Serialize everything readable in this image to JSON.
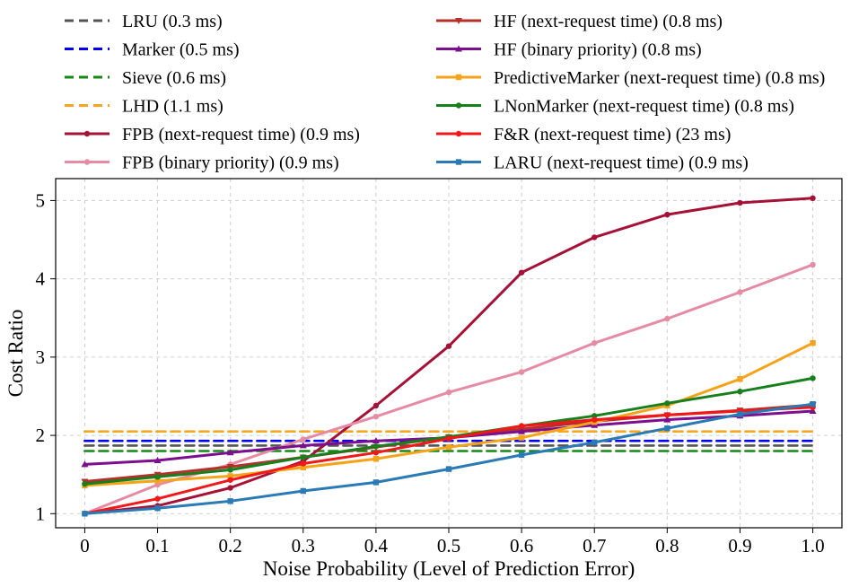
{
  "chart_data": {
    "type": "line",
    "title": "",
    "xlabel": "Noise Probability (Level of Prediction Error)",
    "ylabel": "Cost Ratio",
    "xlim": [
      -0.04,
      1.04
    ],
    "ylim": [
      0.82,
      5.28
    ],
    "x": [
      0,
      0.1,
      0.2,
      0.3,
      0.4,
      0.5,
      0.6,
      0.7,
      0.8,
      0.9,
      1.0
    ],
    "x_tick_labels": [
      "0",
      "0.1",
      "0.2",
      "0.3",
      "0.4",
      "0.5",
      "0.6",
      "0.7",
      "0.8",
      "0.9",
      "1.0"
    ],
    "y_ticks": [
      1,
      2,
      3,
      4,
      5
    ],
    "y_tick_labels": [
      "1",
      "2",
      "3",
      "4",
      "5"
    ],
    "grid": true,
    "legend_position": "top",
    "series": [
      {
        "name": "LRU (0.3 ms)",
        "color": "#555555",
        "style": "dashed",
        "marker": "none",
        "values": [
          1.87,
          1.87,
          1.87,
          1.87,
          1.87,
          1.87,
          1.87,
          1.87,
          1.87,
          1.87,
          1.87
        ]
      },
      {
        "name": "Marker (0.5 ms)",
        "color": "#0000ee",
        "style": "dashed",
        "marker": "none",
        "values": [
          1.93,
          1.93,
          1.93,
          1.93,
          1.93,
          1.93,
          1.93,
          1.93,
          1.93,
          1.93,
          1.93
        ]
      },
      {
        "name": "Sieve (0.6 ms)",
        "color": "#138a13",
        "style": "dashed",
        "marker": "none",
        "values": [
          1.8,
          1.8,
          1.8,
          1.8,
          1.8,
          1.8,
          1.8,
          1.8,
          1.8,
          1.8,
          1.8
        ]
      },
      {
        "name": "LHD (1.1 ms)",
        "color": "#f5a623",
        "style": "dashed",
        "marker": "none",
        "values": [
          2.05,
          2.05,
          2.05,
          2.05,
          2.05,
          2.05,
          2.05,
          2.05,
          2.05,
          2.05,
          2.05
        ]
      },
      {
        "name": "FPB (next-request time) (0.9 ms)",
        "color": "#a51237",
        "style": "solid",
        "marker": "circle",
        "values": [
          1.0,
          1.1,
          1.33,
          1.67,
          2.38,
          3.14,
          4.08,
          4.53,
          4.82,
          4.97,
          5.03
        ]
      },
      {
        "name": "FPB (binary priority) (0.9 ms)",
        "color": "#e58ba3",
        "style": "solid",
        "marker": "circle",
        "values": [
          1.0,
          1.37,
          1.63,
          1.95,
          2.24,
          2.55,
          2.81,
          3.18,
          3.49,
          3.83,
          4.18
        ]
      },
      {
        "name": "HF (next-request time) (0.8 ms)",
        "color": "#b5302a",
        "style": "solid",
        "marker": "triangle-down",
        "values": [
          1.41,
          1.5,
          1.6,
          1.72,
          1.85,
          1.98,
          2.08,
          2.18,
          2.26,
          2.32,
          2.39
        ]
      },
      {
        "name": "HF (binary priority) (0.8 ms)",
        "color": "#7b0f8e",
        "style": "solid",
        "marker": "triangle-up",
        "values": [
          1.63,
          1.68,
          1.78,
          1.87,
          1.93,
          1.97,
          2.05,
          2.13,
          2.2,
          2.25,
          2.31
        ]
      },
      {
        "name": "PredictiveMarker (next-request time) (0.8 ms)",
        "color": "#f5a31a",
        "style": "solid",
        "marker": "square",
        "values": [
          1.36,
          1.42,
          1.48,
          1.59,
          1.7,
          1.85,
          1.97,
          2.17,
          2.38,
          2.72,
          3.18
        ]
      },
      {
        "name": "LNonMarker (next-request time) (0.8 ms)",
        "color": "#17801c",
        "style": "solid",
        "marker": "circle",
        "values": [
          1.38,
          1.47,
          1.56,
          1.72,
          1.86,
          1.98,
          2.12,
          2.25,
          2.41,
          2.56,
          2.73
        ]
      },
      {
        "name": "F&R (next-request time) (23 ms)",
        "color": "#f01818",
        "style": "solid",
        "marker": "circle",
        "values": [
          1.0,
          1.19,
          1.43,
          1.64,
          1.78,
          1.96,
          2.12,
          2.2,
          2.26,
          2.31,
          2.36
        ]
      },
      {
        "name": "LARU (next-request time) (0.9 ms)",
        "color": "#2a7ab5",
        "style": "solid",
        "marker": "square",
        "values": [
          1.0,
          1.07,
          1.16,
          1.29,
          1.4,
          1.57,
          1.75,
          1.91,
          2.09,
          2.27,
          2.4
        ]
      }
    ]
  }
}
